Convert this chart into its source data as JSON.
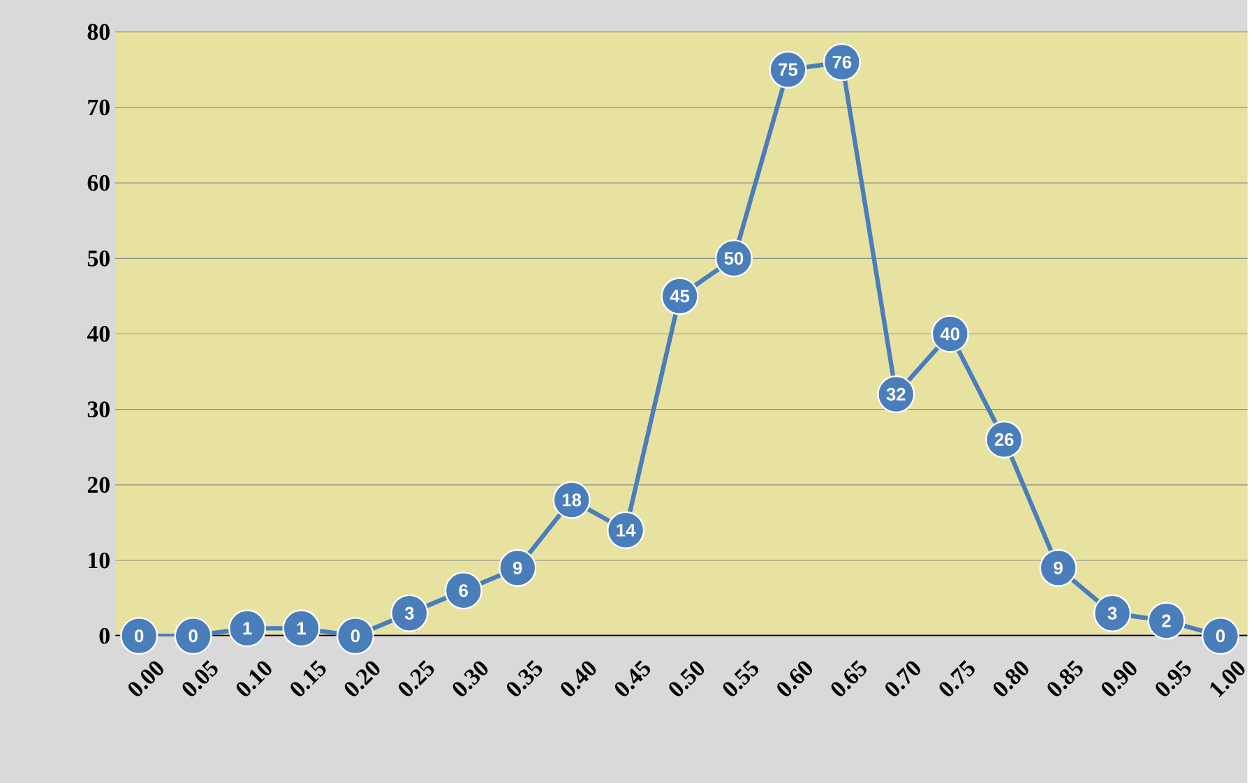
{
  "chart_data": {
    "type": "line",
    "categories": [
      "0.00",
      "0.05",
      "0.10",
      "0.15",
      "0.20",
      "0.25",
      "0.30",
      "0.35",
      "0.40",
      "0.45",
      "0.50",
      "0.55",
      "0.60",
      "0.65",
      "0.70",
      "0.75",
      "0.80",
      "0.85",
      "0.90",
      "0.95",
      "1.00"
    ],
    "values": [
      0,
      0,
      1,
      1,
      0,
      3,
      6,
      9,
      18,
      14,
      45,
      50,
      75,
      76,
      32,
      40,
      26,
      9,
      3,
      2,
      0
    ],
    "color": "#4a7ebb",
    "ylim": [
      0,
      80
    ],
    "yticks": [
      0,
      10,
      20,
      30,
      40,
      50,
      60,
      70,
      80
    ],
    "grid": "y",
    "marker": "circle",
    "line_style": "solid",
    "data_labels": true
  }
}
